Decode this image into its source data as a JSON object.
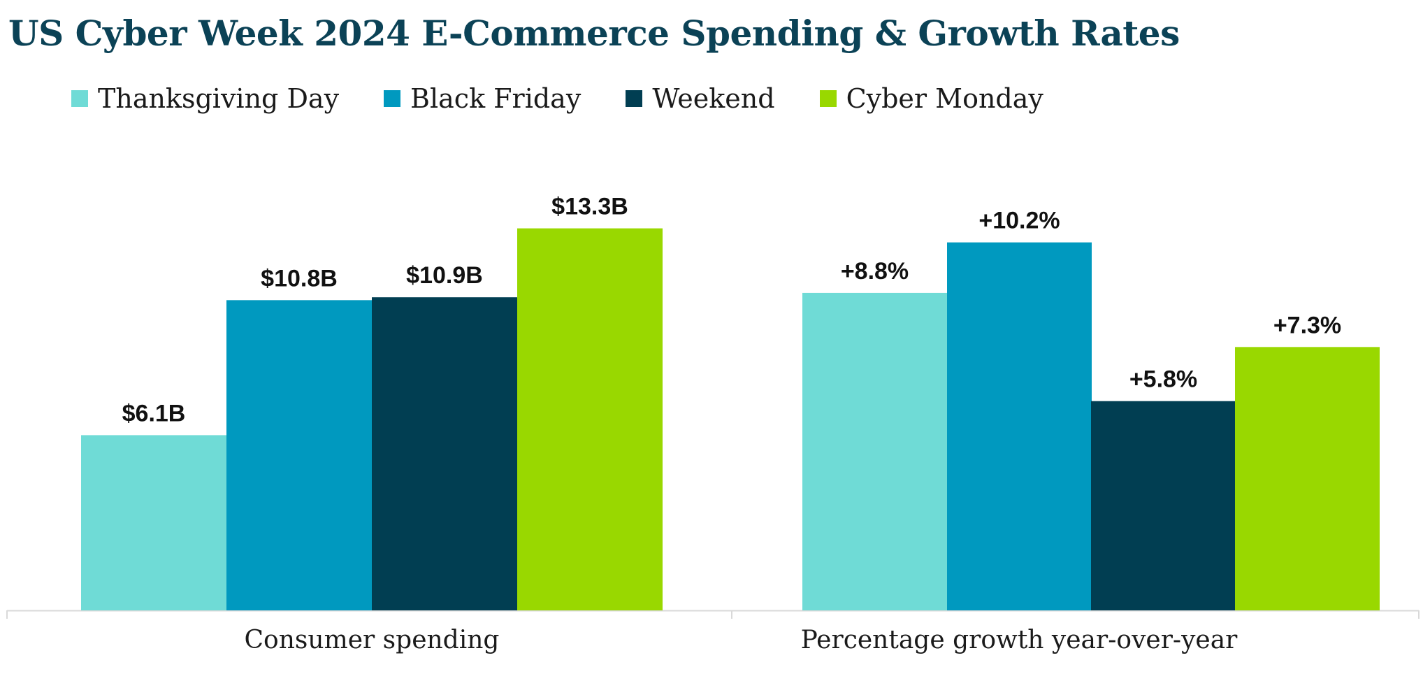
{
  "title": "US Cyber Week 2024 E-Commerce Spending & Growth Rates",
  "colors": {
    "title": "#0b4256",
    "thanksgiving": "#6fdbd6",
    "black_friday": "#0099bf",
    "weekend": "#013e52",
    "cyber_monday": "#99d800",
    "axis": "#d9d9d9"
  },
  "chart_data": [
    {
      "type": "bar",
      "title": "Consumer spending",
      "xlabel": "Consumer spending",
      "ylabel": "",
      "unit": "billion USD",
      "ylim": [
        0,
        15.7
      ],
      "categories": [
        "Thanksgiving Day",
        "Black Friday",
        "Weekend",
        "Cyber Monday"
      ],
      "values": [
        6.1,
        10.8,
        10.9,
        13.3
      ],
      "labels": [
        "$6.1B",
        "$10.8B",
        "$10.9B",
        "$13.3B"
      ],
      "legend": [
        "Thanksgiving Day",
        "Black Friday",
        "Weekend",
        "Cyber Monday"
      ],
      "legend_position": "top-left",
      "grid": false
    },
    {
      "type": "bar",
      "title": "Percentage growth year-over-year",
      "xlabel": "Percentage growth year-over-year",
      "ylabel": "",
      "unit": "percent",
      "ylim": [
        0,
        12.5
      ],
      "categories": [
        "Thanksgiving Day",
        "Black Friday",
        "Weekend",
        "Cyber Monday"
      ],
      "values": [
        8.8,
        10.2,
        5.8,
        7.3
      ],
      "labels": [
        "+8.8%",
        "+10.2%",
        "+5.8%",
        "+7.3%"
      ],
      "legend": [
        "Thanksgiving Day",
        "Black Friday",
        "Weekend",
        "Cyber Monday"
      ],
      "legend_position": "top-left",
      "grid": false
    }
  ]
}
